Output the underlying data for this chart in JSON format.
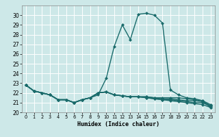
{
  "title": "",
  "xlabel": "Humidex (Indice chaleur)",
  "xlim": [
    -0.5,
    23.5
  ],
  "ylim": [
    20,
    31
  ],
  "yticks": [
    20,
    21,
    22,
    23,
    24,
    25,
    26,
    27,
    28,
    29,
    30
  ],
  "xticks": [
    0,
    1,
    2,
    3,
    4,
    5,
    6,
    7,
    8,
    9,
    10,
    11,
    12,
    13,
    14,
    15,
    16,
    17,
    18,
    19,
    20,
    21,
    22,
    23
  ],
  "bg_color": "#cde8e8",
  "grid_color": "#ffffff",
  "line_color": "#1a6b6b",
  "line_width": 1.0,
  "marker": "D",
  "marker_size": 2.0,
  "lines": [
    [
      22.8,
      22.2,
      22.0,
      21.8,
      21.3,
      21.3,
      21.0,
      21.3,
      21.5,
      21.8,
      23.5,
      26.8,
      29.0,
      27.5,
      30.1,
      30.2,
      30.0,
      29.2,
      22.3,
      21.8,
      21.5,
      21.4,
      21.2,
      20.5
    ],
    [
      22.8,
      22.2,
      22.0,
      21.8,
      21.3,
      21.3,
      21.0,
      21.3,
      21.5,
      22.0,
      22.1,
      21.8,
      21.7,
      21.6,
      21.6,
      21.6,
      21.5,
      21.5,
      21.5,
      21.5,
      21.4,
      21.3,
      21.2,
      20.8
    ],
    [
      22.8,
      22.2,
      22.0,
      21.8,
      21.3,
      21.3,
      21.0,
      21.3,
      21.5,
      22.0,
      22.1,
      21.8,
      21.7,
      21.6,
      21.6,
      21.6,
      21.5,
      21.4,
      21.4,
      21.3,
      21.2,
      21.2,
      21.1,
      20.7
    ],
    [
      22.8,
      22.2,
      22.0,
      21.8,
      21.3,
      21.3,
      21.0,
      21.3,
      21.5,
      22.0,
      22.1,
      21.8,
      21.7,
      21.6,
      21.6,
      21.5,
      21.4,
      21.3,
      21.3,
      21.2,
      21.1,
      21.0,
      21.0,
      20.6
    ],
    [
      22.8,
      22.2,
      22.0,
      21.8,
      21.3,
      21.3,
      21.0,
      21.3,
      21.5,
      22.0,
      22.1,
      21.8,
      21.7,
      21.6,
      21.6,
      21.5,
      21.4,
      21.3,
      21.2,
      21.1,
      21.0,
      20.9,
      20.8,
      20.5
    ]
  ]
}
